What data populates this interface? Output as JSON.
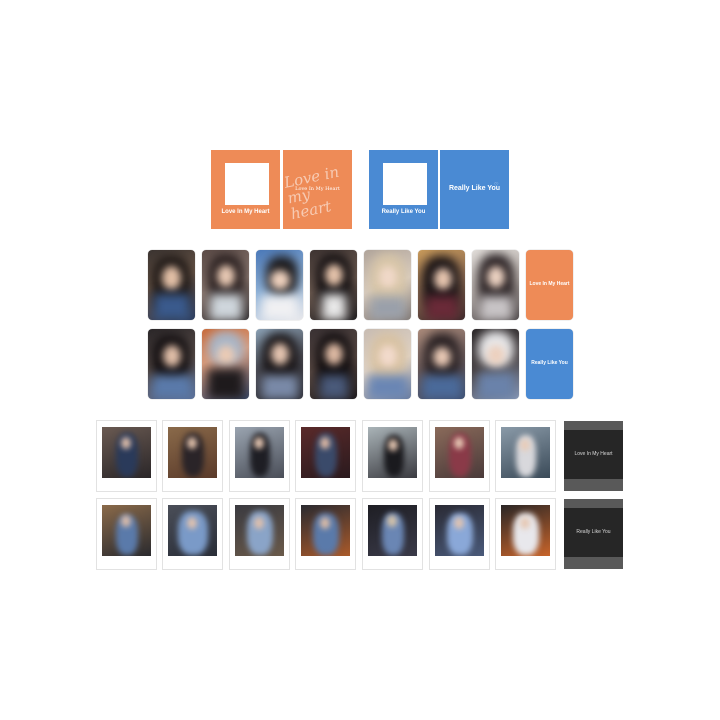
{
  "colors": {
    "orange": "#ee8b57",
    "blue": "#4a8ad3",
    "dark_card": "#262626",
    "dark_frame": "#595959"
  },
  "sleeves": {
    "orange_front": {
      "title": "Love In My Heart"
    },
    "orange_back": {
      "script": "Love in my heart",
      "title": "Love In My Heart"
    },
    "blue_front": {
      "title": "Really Like You"
    },
    "blue_back": {
      "title": "Really Like You"
    }
  },
  "photocards": {
    "row1_cover_title": "Love In My Heart",
    "row2_cover_title": "Really Like You"
  },
  "polaroids": {
    "row1_cover_title": "Love In My Heart",
    "row2_cover_title": "Really Like You"
  }
}
